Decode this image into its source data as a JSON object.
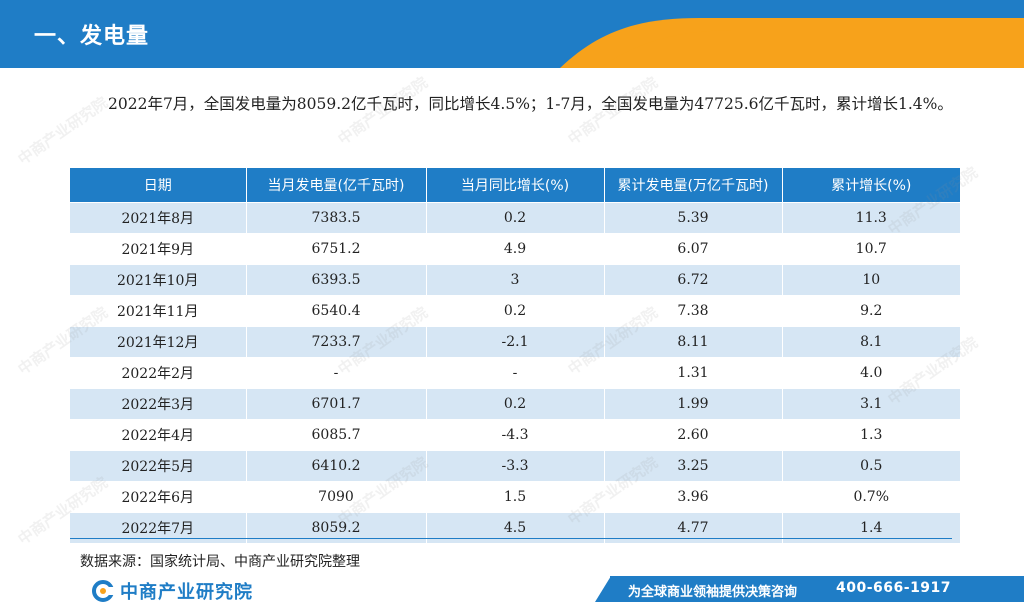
{
  "header": {
    "title": "一、发电量"
  },
  "intro": {
    "text": "2022年7月，全国发电量为8059.2亿千瓦时，同比增长4.5%；1-7月，全国发电量为47725.6亿千瓦时，累计增长1.4%。"
  },
  "table": {
    "headers": [
      "日期",
      "当月发电量(亿千瓦时)",
      "当月同比增长(%)",
      "累计发电量(万亿千瓦时)",
      "累计增长(%)"
    ],
    "rows": [
      [
        "2021年8月",
        "7383.5",
        "0.2",
        "5.39",
        "11.3"
      ],
      [
        "2021年9月",
        "6751.2",
        "4.9",
        "6.07",
        "10.7"
      ],
      [
        "2021年10月",
        "6393.5",
        "3",
        "6.72",
        "10"
      ],
      [
        "2021年11月",
        "6540.4",
        "0.2",
        "7.38",
        "9.2"
      ],
      [
        "2021年12月",
        "7233.7",
        "-2.1",
        "8.11",
        "8.1"
      ],
      [
        "2022年2月",
        "-",
        "-",
        "1.31",
        "4.0"
      ],
      [
        "2022年3月",
        "6701.7",
        "0.2",
        "1.99",
        "3.1"
      ],
      [
        "2022年4月",
        "6085.7",
        "-4.3",
        "2.60",
        "1.3"
      ],
      [
        "2022年5月",
        "6410.2",
        "-3.3",
        "3.25",
        "0.5"
      ],
      [
        "2022年6月",
        "7090",
        "1.5",
        "3.96",
        "0.7%"
      ],
      [
        "2022年7月",
        "8059.2",
        "4.5",
        "4.77",
        "1.4"
      ]
    ]
  },
  "source": {
    "text": "数据来源：国家统计局、中商产业研究院整理"
  },
  "footer": {
    "logo_text": "中商产业研究院",
    "slogan": "为全球商业领袖提供决策咨询",
    "phone": "400-666-1917"
  },
  "watermark": {
    "text": "中商产业研究院"
  },
  "colors": {
    "brand_blue": "#1f7dc6",
    "accent_orange": "#f7a21b",
    "row_alt": "#d6e6f4"
  }
}
